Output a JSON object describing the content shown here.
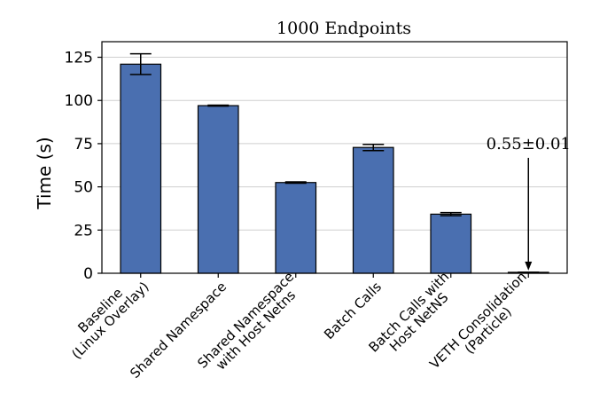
{
  "chart_data": {
    "type": "bar",
    "title": "1000 Endpoints",
    "ylabel": "Time (s)",
    "xlabel": "",
    "ylim": [
      0,
      134
    ],
    "yticks": [
      0,
      25,
      50,
      75,
      100,
      125
    ],
    "grid": true,
    "bar_color": "#4a6fb0",
    "categories": [
      [
        "Baseline",
        "(Linux Overlay)"
      ],
      [
        "Shared  Namespace"
      ],
      [
        "Shared Namespace",
        "with Host Netns"
      ],
      [
        "Batch Calls"
      ],
      [
        "Batch Calls with",
        "Host NetNS"
      ],
      [
        "VETH Consolidation",
        "(Particle)"
      ]
    ],
    "values": [
      121,
      97,
      52.5,
      72.8,
      34.2,
      0.55
    ],
    "errors": [
      6,
      0.3,
      0.4,
      1.8,
      0.9,
      0.01
    ],
    "annotation": {
      "text": "0.55±0.01",
      "category_index": 5
    }
  }
}
